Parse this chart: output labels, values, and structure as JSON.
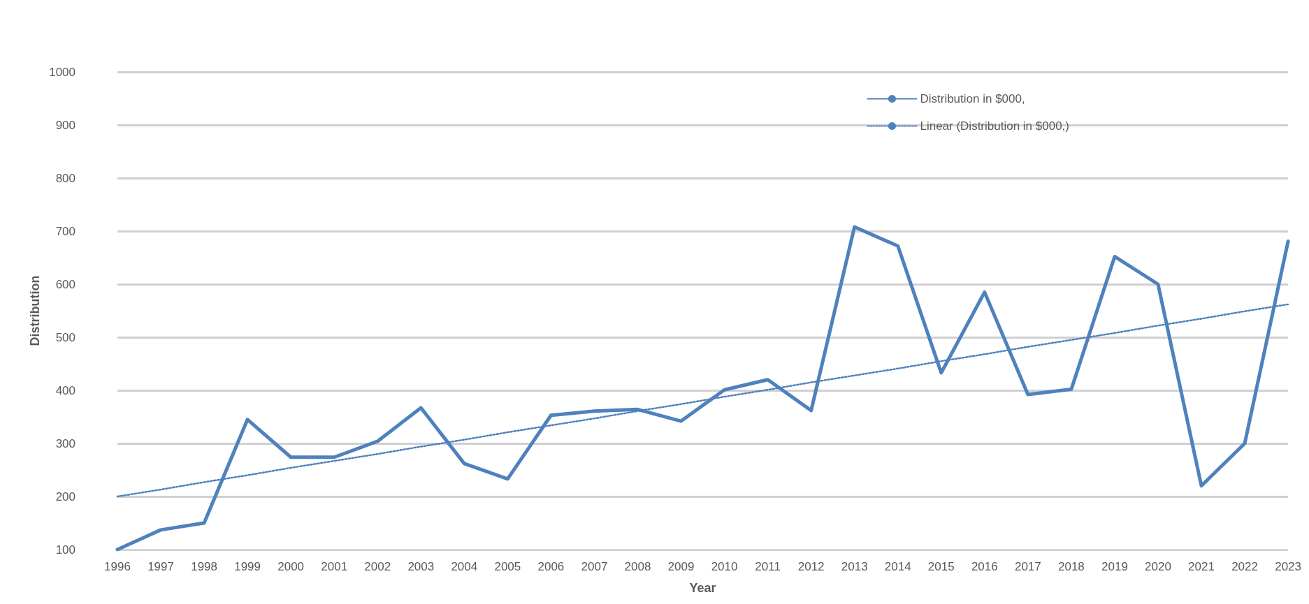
{
  "chart_data": {
    "type": "line",
    "xlabel": "Year",
    "ylabel": "Distribution",
    "categories": [
      "1996",
      "1997",
      "1998",
      "1999",
      "2000",
      "2001",
      "2002",
      "2003",
      "2004",
      "2005",
      "2006",
      "2007",
      "2008",
      "2009",
      "2010",
      "2011",
      "2012",
      "2013",
      "2014",
      "2015",
      "2016",
      "2017",
      "2018",
      "2019",
      "2020",
      "2021",
      "2022",
      "2023"
    ],
    "series": [
      {
        "name": "Distribution in $000,",
        "color": "#4f81bd",
        "line_style": "solid",
        "values": [
          100,
          137,
          150,
          345,
          274,
          274,
          304,
          367,
          262,
          233,
          353,
          361,
          364,
          342,
          401,
          420,
          362,
          708,
          672,
          433,
          585,
          392,
          402,
          652,
          600,
          220,
          300,
          681
        ]
      },
      {
        "name": "Linear (Distribution in $000,)",
        "color": "#4f81bd",
        "line_style": "dotted",
        "values": [
          200,
          213,
          227,
          240,
          254,
          267,
          280,
          294,
          307,
          321,
          334,
          347,
          361,
          374,
          388,
          401,
          415,
          428,
          441,
          455,
          468,
          482,
          495,
          508,
          522,
          535,
          549,
          562
        ]
      }
    ],
    "ylim": [
      100,
      1000
    ],
    "yticks": [
      100,
      200,
      300,
      400,
      500,
      600,
      700,
      800,
      900,
      1000
    ],
    "grid": "y",
    "legend": "top right",
    "marker": "none"
  }
}
